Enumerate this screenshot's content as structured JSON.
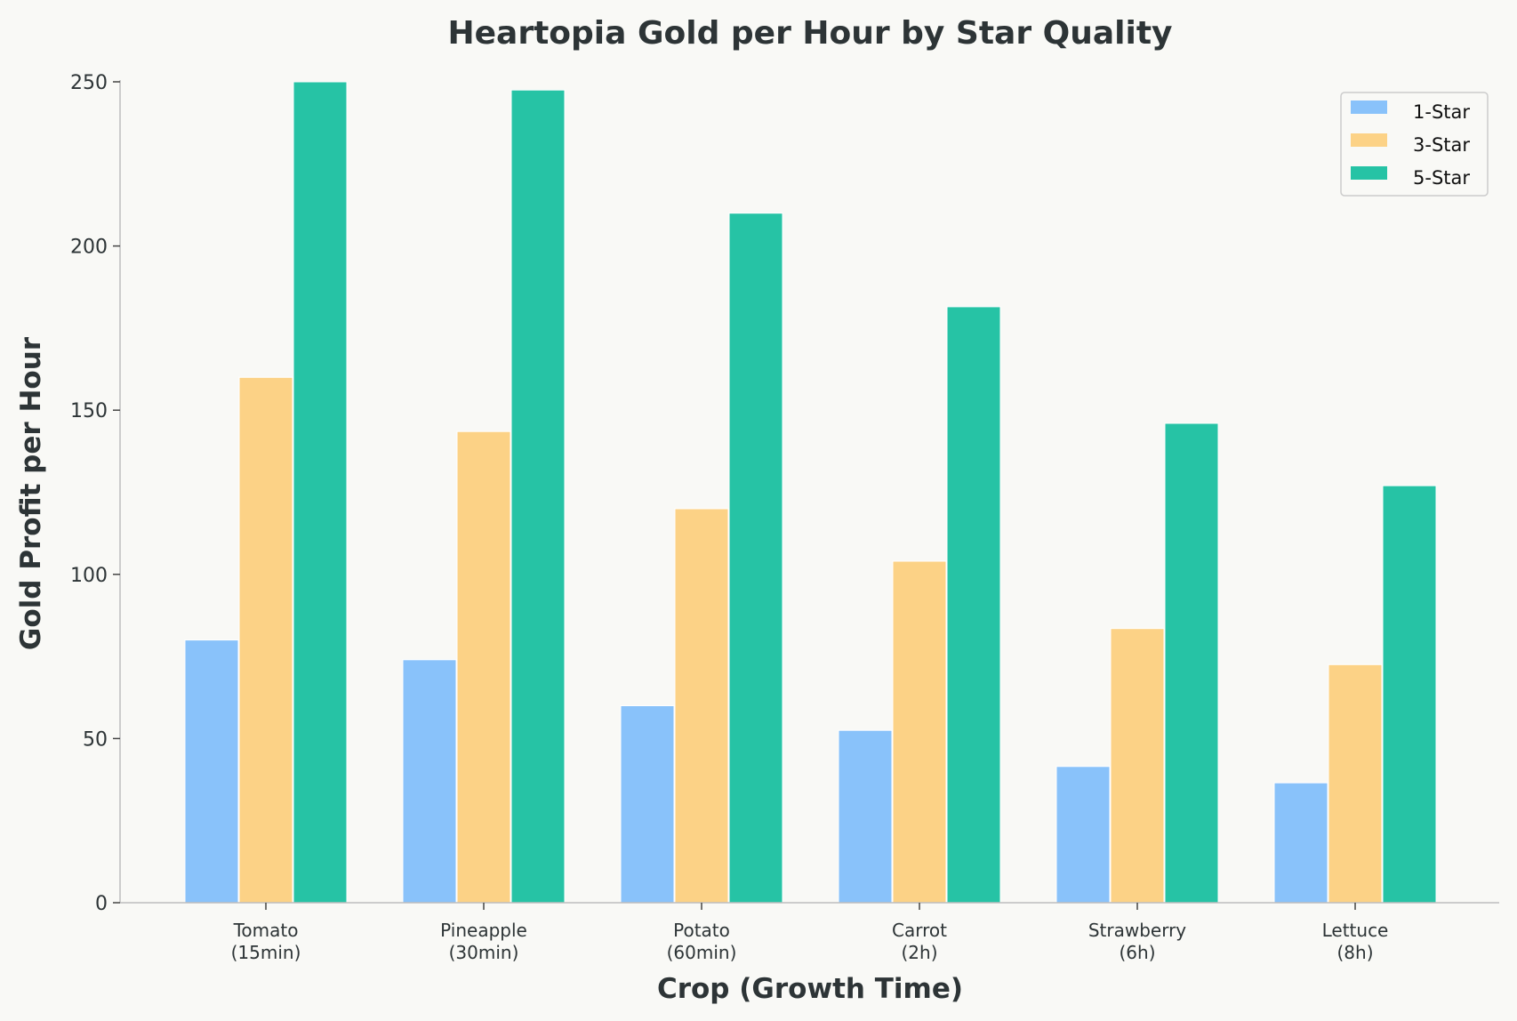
{
  "chart_data": {
    "type": "bar",
    "title": "Heartopia Gold per Hour by Star Quality",
    "xlabel": "Crop (Growth Time)",
    "ylabel": "Gold Profit per Hour",
    "categories": [
      [
        "Tomato",
        "(15min)"
      ],
      [
        "Pineapple",
        "(30min)"
      ],
      [
        "Potato",
        "(60min)"
      ],
      [
        "Carrot",
        "(2h)"
      ],
      [
        "Strawberry",
        "(6h)"
      ],
      [
        "Lettuce",
        "(8h)"
      ]
    ],
    "series": [
      {
        "name": "1-Star",
        "color": "#89c2fa",
        "values": [
          80,
          74,
          60,
          52.5,
          41.5,
          36.5
        ]
      },
      {
        "name": "3-Star",
        "color": "#fcd286",
        "values": [
          160,
          143.5,
          120,
          104,
          83.5,
          72.5
        ]
      },
      {
        "name": "5-Star",
        "color": "#26c3a5",
        "values": [
          250,
          247.5,
          210,
          181.5,
          146,
          127
        ]
      }
    ],
    "ylim": [
      0,
      250
    ],
    "yticks": [
      0,
      50,
      100,
      150,
      200,
      250
    ],
    "grid": false,
    "legend_position": "top-right"
  }
}
